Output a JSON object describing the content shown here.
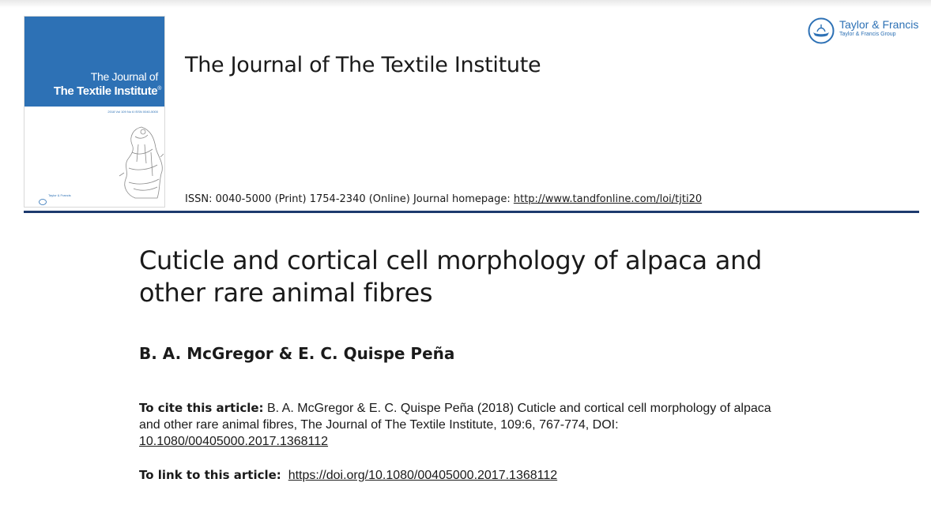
{
  "cover": {
    "the_journal_of": "The Journal of",
    "name": "The Textile Institute",
    "registered_mark": "®",
    "issn_line": "2018  Vol 109  No 6  ISSN 0040-5000",
    "publisher_small": "Taylor & Francis"
  },
  "header": {
    "journal_title": "The Journal of The Textile Institute",
    "issn_text": "ISSN: 0040-5000 (Print) 1754-2340 (Online) Journal homepage: ",
    "homepage_url": "http://www.tandfonline.com/loi/tjti20"
  },
  "publisher": {
    "name": "Taylor & Francis",
    "group": "Taylor & Francis Group",
    "brand_color": "#2d71b5"
  },
  "article": {
    "title_line1": "Cuticle and cortical cell morphology of alpaca and",
    "title_line2": "other rare animal fibres",
    "authors": "B. A. McGregor & E. C. Quispe Peña"
  },
  "citation": {
    "label": "To cite this article:",
    "text": " B. A. McGregor & E. C. Quispe Peña (2018) Cuticle and cortical cell morphology of alpaca and other rare animal fibres, The Journal of The Textile Institute, 109:6, 767-774, DOI: ",
    "doi": "10.1080/00405000.2017.1368112"
  },
  "link": {
    "label": "To link to this article:",
    "url": "https://doi.org/10.1080/00405000.2017.1368112"
  },
  "colors": {
    "rule": "#1d3a6e",
    "cover_blue": "#2d71b5"
  }
}
